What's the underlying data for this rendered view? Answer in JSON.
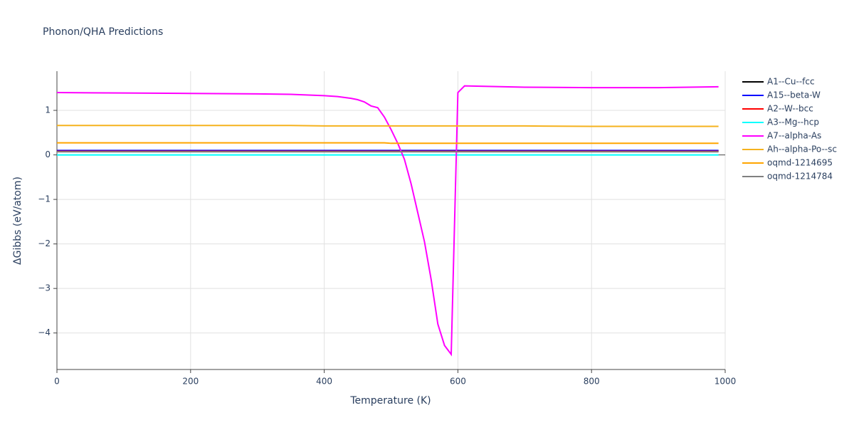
{
  "chart_data": {
    "type": "line",
    "title": "Phonon/QHA Predictions",
    "x_label": "Temperature (K)",
    "y_label": "ΔGibbs (eV/atom)",
    "x": [
      0,
      100,
      200,
      300,
      350,
      400,
      420,
      440,
      450,
      460,
      470,
      480,
      490,
      500,
      510,
      520,
      530,
      540,
      550,
      560,
      570,
      580,
      590,
      600,
      610,
      700,
      800,
      900,
      990
    ],
    "xlim": [
      0,
      1000
    ],
    "xticks": [
      0,
      200,
      400,
      600,
      800,
      1000
    ],
    "ylim": [
      -4.82,
      1.88
    ],
    "yticks": [
      {
        "value": -4,
        "label": "−4"
      },
      {
        "value": -3,
        "label": "−3"
      },
      {
        "value": -2,
        "label": "−2"
      },
      {
        "value": -1,
        "label": "−1"
      },
      0,
      1
    ],
    "grid": true,
    "series": [
      {
        "name": "A1--Cu--fcc",
        "color": "#000000",
        "values": [
          0.09,
          0.09,
          0.09,
          0.09,
          0.09,
          0.09,
          0.09,
          0.09,
          0.09,
          0.09,
          0.09,
          0.09,
          0.09,
          0.09,
          0.09,
          0.09,
          0.09,
          0.09,
          0.09,
          0.09,
          0.09,
          0.09,
          0.09,
          0.09,
          0.09,
          0.09,
          0.09,
          0.09,
          0.09
        ]
      },
      {
        "name": "A15--beta-W",
        "color": "#0000ff",
        "values": [
          0.1,
          0.1,
          0.1,
          0.1,
          0.1,
          0.1,
          0.1,
          0.1,
          0.1,
          0.1,
          0.1,
          0.1,
          0.1,
          0.1,
          0.1,
          0.1,
          0.1,
          0.1,
          0.1,
          0.1,
          0.1,
          0.1,
          0.1,
          0.1,
          0.1,
          0.1,
          0.1,
          0.1,
          0.1
        ]
      },
      {
        "name": "A2--W--bcc",
        "color": "#ff0000",
        "values": [
          0.08,
          0.08,
          0.08,
          0.08,
          0.08,
          0.08,
          0.08,
          0.08,
          0.08,
          0.08,
          0.08,
          0.08,
          0.08,
          0.08,
          0.08,
          0.08,
          0.08,
          0.08,
          0.08,
          0.08,
          0.08,
          0.08,
          0.08,
          0.08,
          0.08,
          0.08,
          0.08,
          0.08,
          0.08
        ]
      },
      {
        "name": "A3--Mg--hcp",
        "color": "#00ffff",
        "values": [
          0,
          0,
          0,
          0,
          0,
          0,
          0,
          0,
          0,
          0,
          0,
          0,
          0,
          0,
          0,
          0,
          0,
          0,
          0,
          0,
          0,
          0,
          0,
          0,
          0,
          0,
          0,
          0,
          0
        ]
      },
      {
        "name": "A7--alpha-As",
        "color": "#ff00ff",
        "values": [
          1.4,
          1.39,
          1.38,
          1.37,
          1.36,
          1.33,
          1.31,
          1.27,
          1.24,
          1.19,
          1.1,
          1.06,
          0.85,
          0.57,
          0.26,
          -0.1,
          -0.65,
          -1.3,
          -1.95,
          -2.8,
          -3.8,
          -4.28,
          -4.48,
          1.4,
          1.55,
          1.52,
          1.51,
          1.51,
          1.53
        ]
      },
      {
        "name": "Ah--alpha-Po--sc",
        "color": "#f5b21e",
        "values": [
          0.66,
          0.66,
          0.66,
          0.66,
          0.66,
          0.65,
          0.65,
          0.65,
          0.65,
          0.65,
          0.65,
          0.65,
          0.65,
          0.65,
          0.65,
          0.65,
          0.65,
          0.65,
          0.65,
          0.65,
          0.65,
          0.65,
          0.65,
          0.65,
          0.65,
          0.65,
          0.64,
          0.64,
          0.64
        ]
      },
      {
        "name": "oqmd-1214695",
        "color": "#ffa500",
        "values": [
          0.27,
          0.27,
          0.27,
          0.27,
          0.27,
          0.27,
          0.27,
          0.27,
          0.27,
          0.27,
          0.27,
          0.27,
          0.27,
          0.26,
          0.26,
          0.26,
          0.26,
          0.26,
          0.26,
          0.26,
          0.26,
          0.26,
          0.26,
          0.26,
          0.26,
          0.26,
          0.26,
          0.26,
          0.26
        ]
      },
      {
        "name": "oqmd-1214784",
        "color": "#808080",
        "values": [
          0.07,
          0.07,
          0.07,
          0.07,
          0.07,
          0.07,
          0.07,
          0.07,
          0.07,
          0.07,
          0.07,
          0.07,
          0.07,
          0.07,
          0.07,
          0.07,
          0.07,
          0.07,
          0.07,
          0.07,
          0.07,
          0.07,
          0.07,
          0.07,
          0.07,
          0.07,
          0.07,
          0.07,
          0.07
        ]
      }
    ]
  }
}
